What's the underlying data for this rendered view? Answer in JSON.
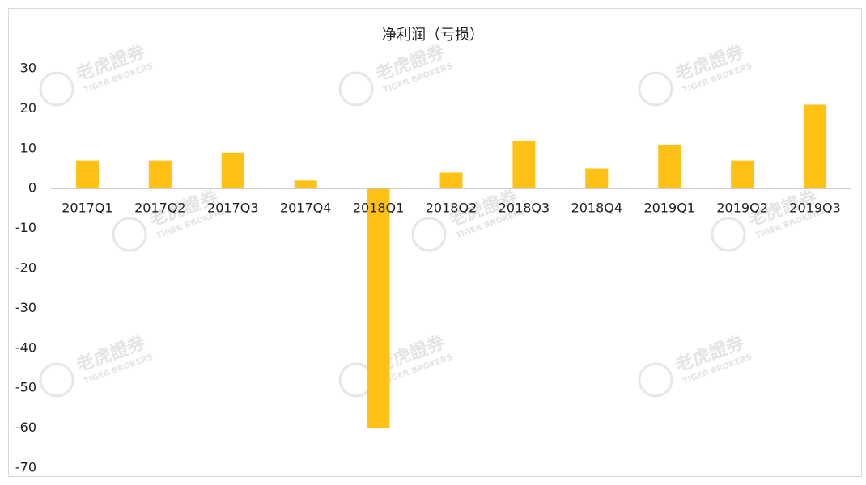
{
  "chart_data": {
    "type": "bar",
    "title": "净利润（亏损）",
    "categories": [
      "2017Q1",
      "2017Q2",
      "2017Q3",
      "2017Q4",
      "2018Q1",
      "2018Q2",
      "2018Q3",
      "2018Q4",
      "2019Q1",
      "2019Q2",
      "2019Q3"
    ],
    "values": [
      7,
      7,
      9,
      2,
      -60,
      4,
      12,
      5,
      11,
      7,
      21
    ],
    "color": "#ffc116",
    "ylim": [
      -70,
      30
    ],
    "yticks": [
      -70,
      -60,
      -50,
      -40,
      -30,
      -20,
      -10,
      0,
      10,
      20,
      30
    ],
    "grid": false,
    "watermark": {
      "name": "老虎證券",
      "subtitle": "TIGER BROKERS"
    }
  }
}
